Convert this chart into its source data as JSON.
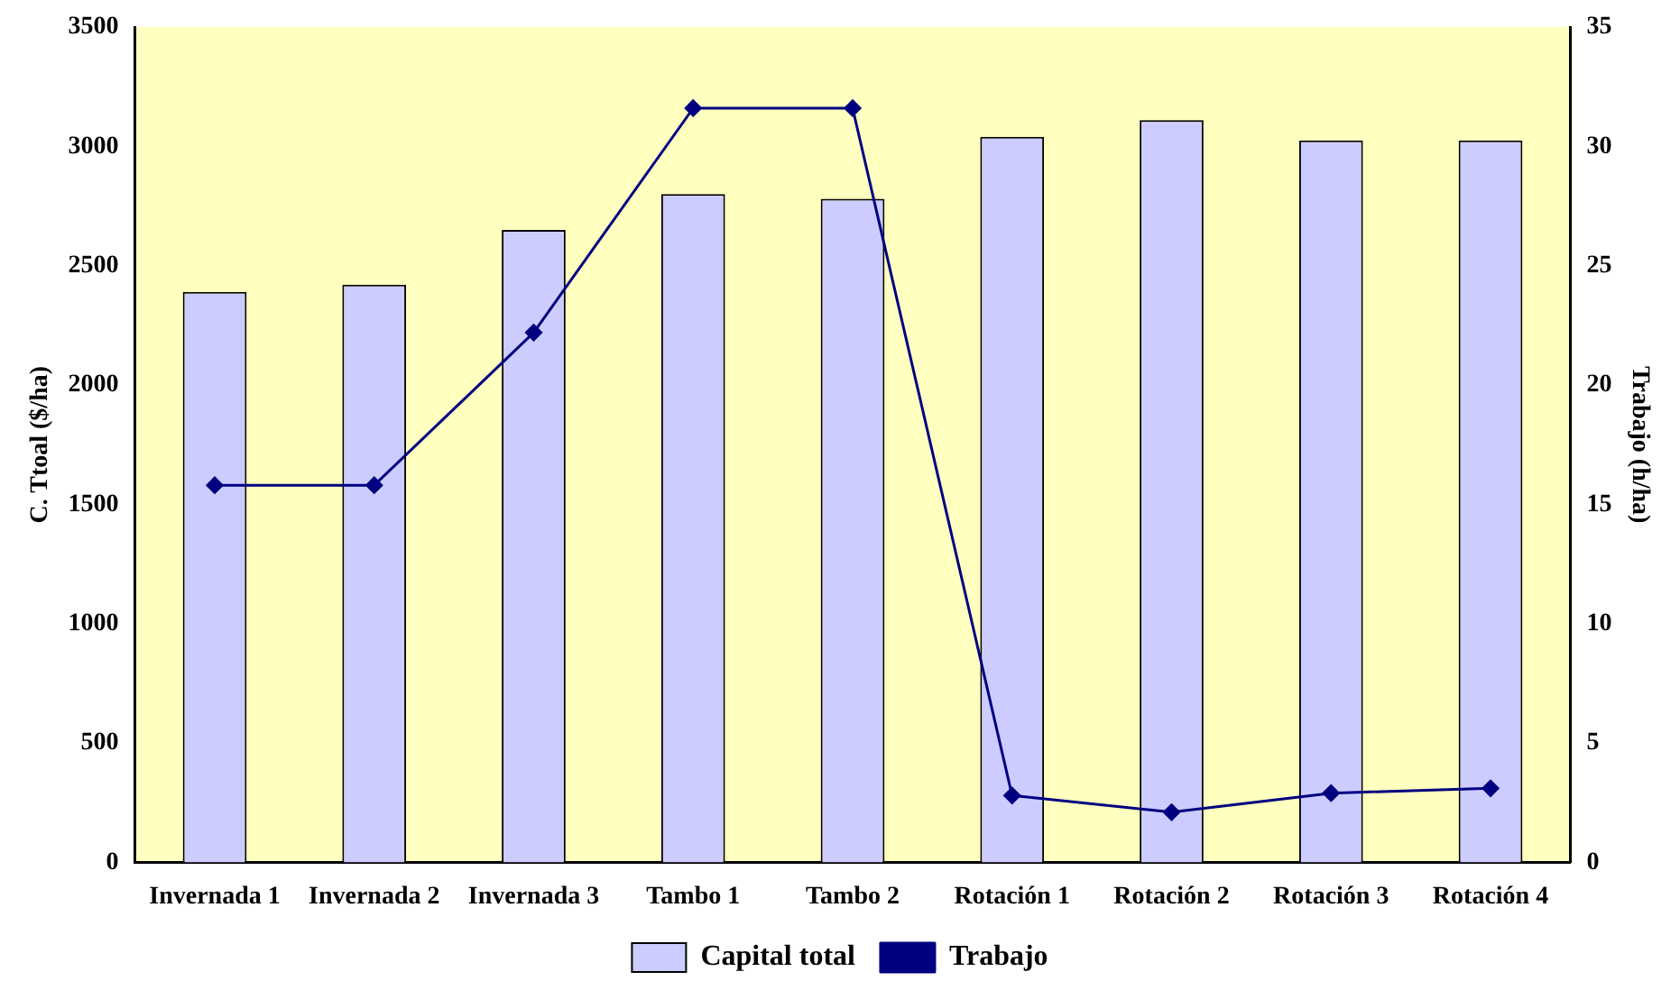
{
  "chart_data": {
    "type": "bar",
    "categories": [
      "Invernada 1",
      "Invernada 2",
      "Invernada 3",
      "Tambo 1",
      "Tambo 2",
      "Rotación 1",
      "Rotación 2",
      "Rotación 3",
      "Rotación 4"
    ],
    "series": [
      {
        "name": "Capital total",
        "color": "#ccccff",
        "values": [
          2390,
          2420,
          2650,
          2800,
          2780,
          3040,
          3110,
          3025,
          3025
        ]
      },
      {
        "name": "Trabajo",
        "type": "line",
        "axis": "y2",
        "color": "#000080",
        "values": [
          15.8,
          15.8,
          22.2,
          31.6,
          31.6,
          2.8,
          2.1,
          2.9,
          3.1
        ]
      }
    ],
    "ylabel": "C. Ttoal ($/ha)",
    "y2label": "Trabajo (h/ha)",
    "ylim": [
      0,
      3500
    ],
    "yticks": [
      0,
      500,
      1000,
      1500,
      2000,
      2500,
      3000,
      3500
    ],
    "y2lim": [
      0,
      35
    ],
    "y2ticks": [
      0,
      5,
      10,
      15,
      20,
      25,
      30,
      35
    ],
    "grid": false,
    "legend": "bottom",
    "marker": "diamond",
    "line_style": "solid"
  }
}
